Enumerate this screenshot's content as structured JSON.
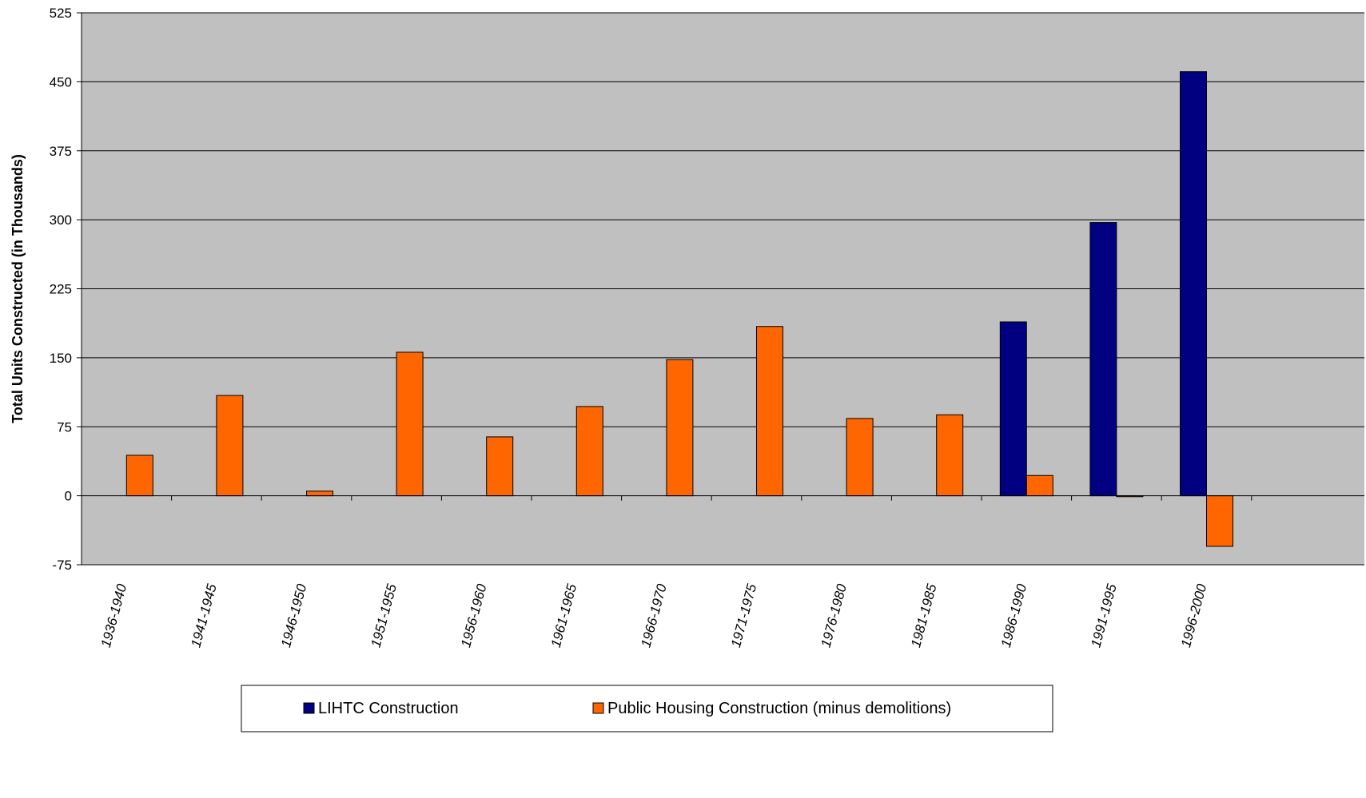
{
  "chart_data": {
    "type": "bar",
    "title": "",
    "xlabel": "",
    "ylabel": "Total Units Constructed (in Thousands)",
    "ylim": [
      -75,
      525
    ],
    "yticks": [
      -75,
      0,
      75,
      150,
      225,
      300,
      375,
      450,
      525
    ],
    "grid": true,
    "legend_position": "bottom",
    "colors": {
      "plot_bg": "#c0c0c0",
      "gridline": "#000000"
    },
    "categories": [
      "1936-1940",
      "1941-1945",
      "1946-1950",
      "1951-1955",
      "1956-1960",
      "1961-1965",
      "1966-1970",
      "1971-1975",
      "1976-1980",
      "1981-1985",
      "1986-1990",
      "1991-1995",
      "1996-2000"
    ],
    "series": [
      {
        "name": "LIHTC Construction",
        "color": "#000080",
        "values": [
          0,
          0,
          0,
          0,
          0,
          0,
          0,
          0,
          0,
          0,
          189,
          297,
          461
        ]
      },
      {
        "name": "Public Housing Construction (minus demolitions)",
        "color": "#ff6600",
        "values": [
          44,
          109,
          5,
          156,
          64,
          97,
          148,
          184,
          84,
          88,
          22,
          -1,
          -55
        ]
      }
    ]
  }
}
